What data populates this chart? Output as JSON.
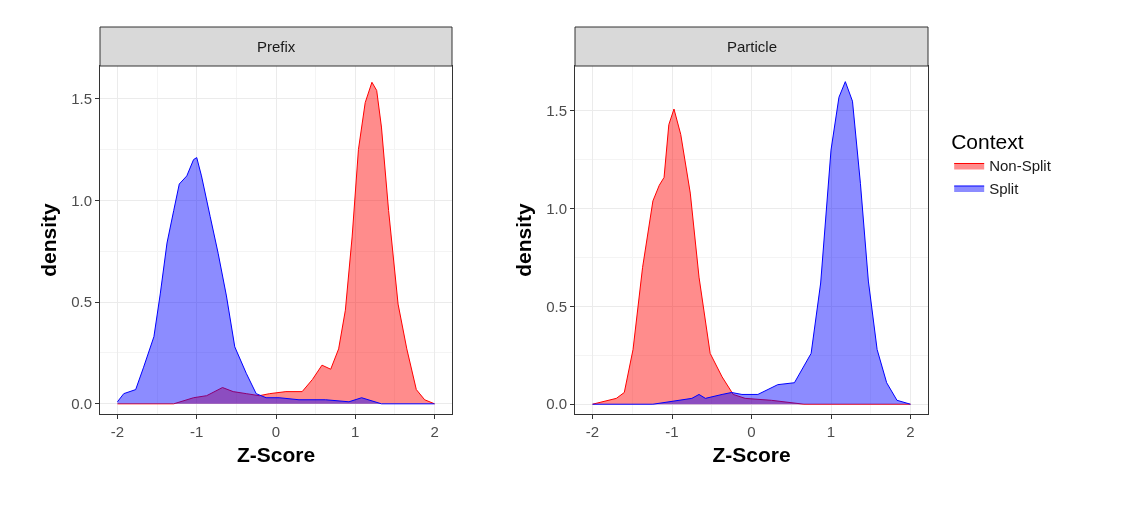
{
  "chart_data": [
    {
      "type": "area",
      "title": "Prefix",
      "xlabel": "Z-Score",
      "ylabel": "density",
      "xlim": [
        -2.22,
        2.22
      ],
      "ylim": [
        -0.05,
        1.66
      ],
      "xticks": [
        -2,
        -1,
        0,
        1,
        2
      ],
      "yticks": [
        {
          "value": 0,
          "label": "0.0"
        },
        {
          "value": 0.5,
          "label": "0.5"
        },
        {
          "value": 1,
          "label": "1.0"
        },
        {
          "value": 1.5,
          "label": "1.5"
        }
      ],
      "grid": true,
      "legend": false,
      "series": [
        {
          "color": "#ff0000",
          "x": [
            -2,
            -1.29,
            -1.04,
            -0.875,
            -0.675,
            -0.54,
            -0.375,
            -0.21,
            -0.08,
            0.125,
            0.33,
            0.46,
            0.58,
            0.69,
            0.79,
            0.875,
            0.96,
            1.04,
            1.125,
            1.21,
            1.27,
            1.33,
            1.42,
            1.54,
            1.65,
            1.77,
            1.875,
            2
          ],
          "values": [
            0,
            0,
            0.03,
            0.04,
            0.08,
            0.06,
            0.05,
            0.04,
            0.05,
            0.06,
            0.06,
            0.12,
            0.19,
            0.17,
            0.27,
            0.46,
            0.82,
            1.25,
            1.48,
            1.58,
            1.54,
            1.36,
            0.95,
            0.49,
            0.27,
            0.07,
            0.02,
            0
          ]
        },
        {
          "color": "#0000ff",
          "x": [
            -2,
            -1.92,
            -1.77,
            -1.67,
            -1.54,
            -1.46,
            -1.375,
            -1.29,
            -1.22,
            -1.125,
            -1.04,
            -1,
            -0.94,
            -0.83,
            -0.73,
            -0.625,
            -0.52,
            -0.375,
            -0.25,
            -0.125,
            0.04,
            0.29,
            0.625,
            0.92,
            1.08,
            1.33,
            2
          ],
          "values": [
            0.01,
            0.05,
            0.07,
            0.18,
            0.33,
            0.54,
            0.79,
            0.95,
            1.08,
            1.12,
            1.2,
            1.21,
            1.12,
            0.92,
            0.74,
            0.53,
            0.28,
            0.15,
            0.05,
            0.03,
            0.03,
            0.02,
            0.02,
            0.01,
            0.03,
            0,
            0
          ]
        }
      ]
    },
    {
      "type": "area",
      "title": "Particle",
      "xlabel": "Z-Score",
      "ylabel": "density",
      "legend_title": "Context",
      "xlim": [
        -2.22,
        2.22
      ],
      "ylim": [
        -0.05,
        1.73
      ],
      "xticks": [
        -2,
        -1,
        0,
        1,
        2
      ],
      "yticks": [
        {
          "value": 0,
          "label": "0.0"
        },
        {
          "value": 0.5,
          "label": "0.5"
        },
        {
          "value": 1,
          "label": "1.0"
        },
        {
          "value": 1.5,
          "label": "1.5"
        }
      ],
      "grid": true,
      "legend": "right",
      "series": [
        {
          "name": "Non-Split",
          "color": "#ff0000",
          "x": [
            -2,
            -1.7,
            -1.6,
            -1.49,
            -1.37,
            -1.24,
            -1.16,
            -1.1,
            -1.04,
            -0.975,
            -0.89,
            -0.77,
            -0.66,
            -0.52,
            -0.37,
            -0.23,
            -0.08,
            0.25,
            0.66,
            2
          ],
          "values": [
            0,
            0.03,
            0.06,
            0.28,
            0.7,
            1.04,
            1.12,
            1.16,
            1.43,
            1.51,
            1.38,
            1.08,
            0.65,
            0.26,
            0.14,
            0.05,
            0.03,
            0.02,
            0,
            0
          ]
        },
        {
          "name": "Split",
          "color": "#0000ff",
          "x": [
            -2,
            -1.24,
            -0.75,
            -0.66,
            -0.58,
            -0.37,
            -0.25,
            -0.12,
            0.08,
            0.33,
            0.54,
            0.75,
            0.87,
            1,
            1.1,
            1.18,
            1.27,
            1.37,
            1.47,
            1.58,
            1.7,
            1.83,
            2
          ],
          "values": [
            0,
            0,
            0.03,
            0.05,
            0.03,
            0.05,
            0.06,
            0.05,
            0.05,
            0.1,
            0.11,
            0.26,
            0.62,
            1.3,
            1.57,
            1.65,
            1.55,
            1.13,
            0.63,
            0.28,
            0.11,
            0.02,
            0
          ]
        }
      ]
    }
  ]
}
